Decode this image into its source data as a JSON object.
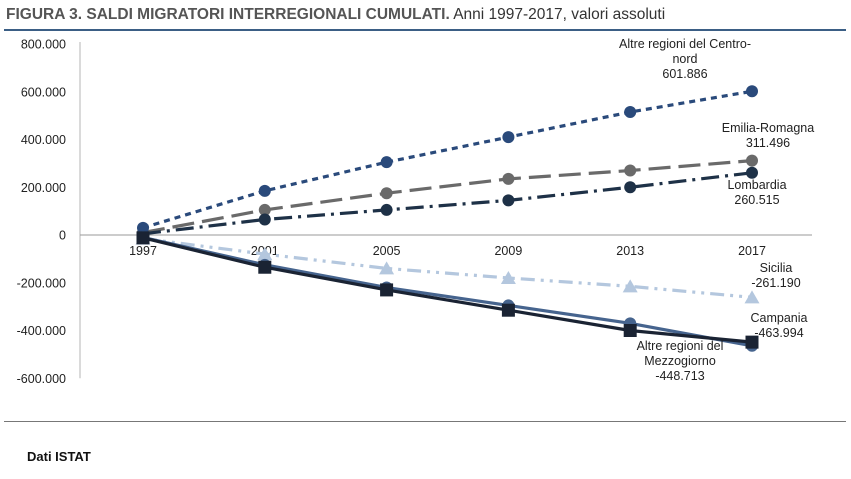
{
  "header": {
    "title_bold": "FIGURA 3. SALDI MIGRATORI INTERREGIONALI CUMULATI.",
    "title_rest": "Anni 1997-2017, valori assoluti"
  },
  "footer": {
    "source": "Dati ISTAT"
  },
  "colors": {
    "navy_dotted": "#2a4a7b",
    "gray_dashed": "#6a6a6a",
    "dark_dashdot": "#1e3147",
    "light_blue": "#b4c7de",
    "steel_blue": "#46648e",
    "black_navy": "#1a2333"
  },
  "chart_data": {
    "type": "line",
    "x": [
      1997,
      2001,
      2005,
      2009,
      2013,
      2017
    ],
    "x_tick_labels": [
      "1997",
      "2001",
      "2005",
      "2009",
      "2013",
      "2017"
    ],
    "ylim": [
      -600000,
      800000
    ],
    "y_tick_labels": [
      "800.000",
      "600.000",
      "400.000",
      "200.000",
      "0",
      "-200.000",
      "-400.000",
      "-600.000"
    ],
    "y_ticks": [
      800000,
      600000,
      400000,
      200000,
      0,
      -200000,
      -400000,
      -600000
    ],
    "grid": false,
    "series": [
      {
        "label_lines": [
          "Altre regioni del Centro-",
          "nord",
          "601.886"
        ],
        "values": [
          30000,
          185000,
          305000,
          410000,
          515000,
          601886
        ],
        "color_key": "navy_dotted",
        "dash": "6,5",
        "marker": "circle"
      },
      {
        "label_lines": [
          "Emilia-Romagna",
          "311.496"
        ],
        "values": [
          10000,
          105000,
          175000,
          235000,
          270000,
          311496
        ],
        "color_key": "gray_dashed",
        "dash": "22,8",
        "marker": "circle"
      },
      {
        "label_lines": [
          "Lombardia",
          "260.515"
        ],
        "values": [
          5000,
          65000,
          105000,
          145000,
          200000,
          260515
        ],
        "color_key": "dark_dashdot",
        "dash": "18,6,3,6",
        "marker": "circle"
      },
      {
        "label_lines": [
          "Sicilia",
          "-261.190"
        ],
        "values": [
          -15000,
          -80000,
          -140000,
          -180000,
          -215000,
          -261190
        ],
        "color_key": "light_blue",
        "dash": "14,6,3,6,3,6",
        "marker": "triangle"
      },
      {
        "label_lines": [
          "Campania",
          "-463.994"
        ],
        "values": [
          -10000,
          -125000,
          -220000,
          -295000,
          -370000,
          -463994
        ],
        "color_key": "steel_blue",
        "dash": "",
        "marker": "circle"
      },
      {
        "label_lines": [
          "Altre regioni del",
          "Mezzogiorno",
          "-448.713"
        ],
        "values": [
          -12000,
          -135000,
          -230000,
          -315000,
          -400000,
          -448713
        ],
        "color_key": "black_navy",
        "dash": "",
        "marker": "square"
      }
    ]
  }
}
